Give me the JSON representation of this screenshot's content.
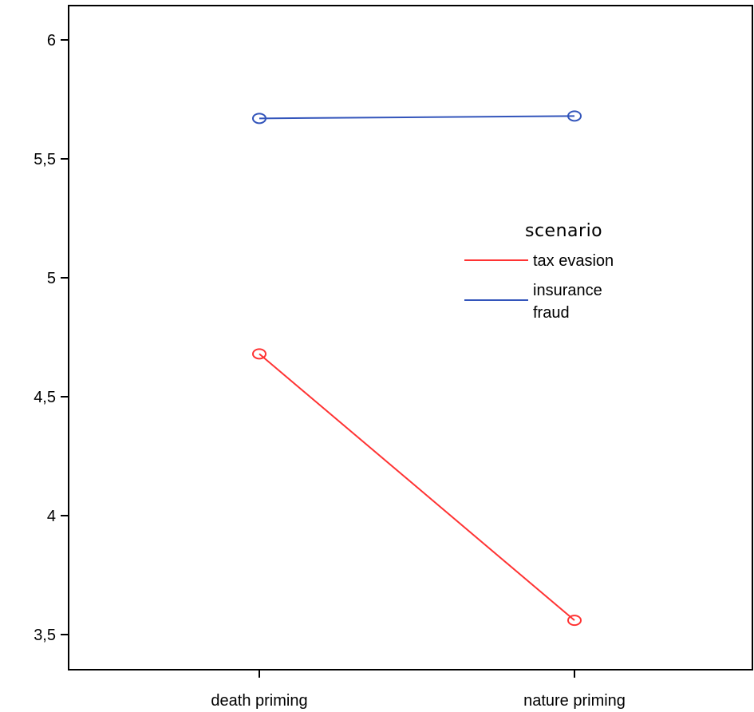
{
  "chart_data": {
    "type": "line",
    "categories": [
      "death priming",
      "nature priming"
    ],
    "ylim": [
      3.38,
      6.15
    ],
    "yticks": [
      3.5,
      4,
      4.5,
      5,
      5.5,
      6
    ],
    "ytick_labels": [
      "3,5",
      "4",
      "4,5",
      "5",
      "5,5",
      "6"
    ],
    "grid": false,
    "legend": {
      "title": "scenario",
      "position": "right"
    },
    "series": [
      {
        "name": "tax evasion",
        "name_lines": [
          "tax evasion"
        ],
        "color": "#ff3333",
        "marker": "circle-open",
        "values": [
          4.68,
          3.56
        ]
      },
      {
        "name": "insurance fraud",
        "name_lines": [
          "insurance",
          "fraud"
        ],
        "color": "#3355bb",
        "marker": "circle-open",
        "values": [
          5.67,
          5.68
        ]
      }
    ],
    "title": "",
    "xlabel": "",
    "ylabel": ""
  }
}
